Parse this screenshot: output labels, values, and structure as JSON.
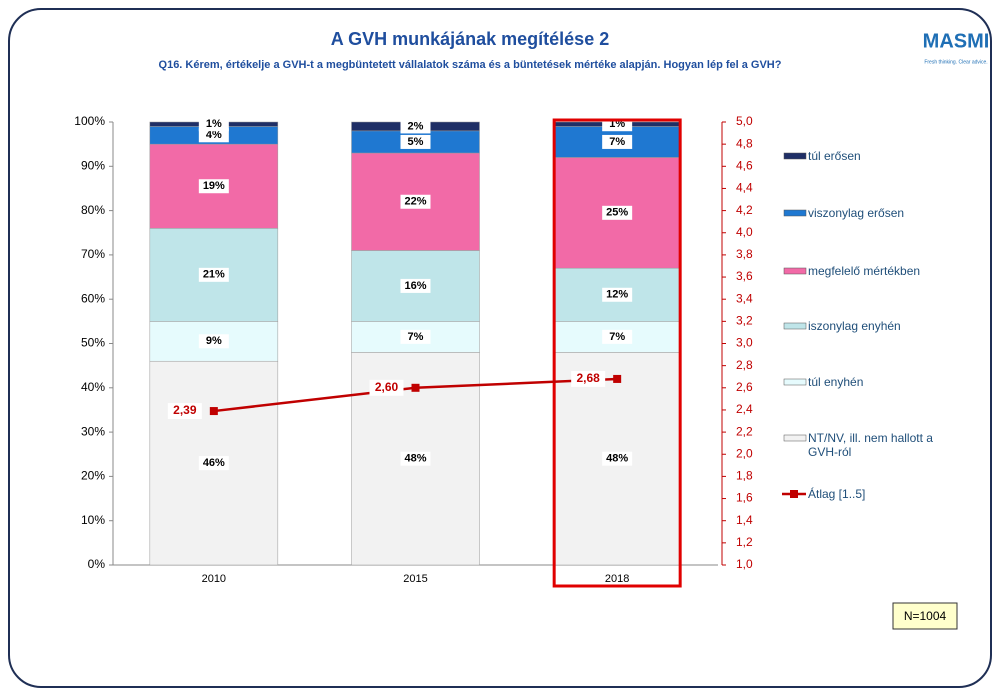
{
  "chart_data": {
    "type": "bar",
    "stacked": true,
    "title": "A GVH munkájának megítélése 2",
    "subtitle": "Q16. Kérem, értékelje a GVH-t a megbüntetett vállalatok száma és a büntetések mértéke alapján. Hogyan lép fel a GVH?",
    "logo": "MASMI",
    "tagline": "Fresh thinking. Clear advice.",
    "note": "N=1004",
    "categories": [
      "2010",
      "2015",
      "2018"
    ],
    "series": [
      {
        "name": "NT/NV, ill. nem hallott a GVH-ról",
        "color": "#f2f2f2",
        "values": [
          46,
          48,
          48
        ],
        "value_labels": [
          "46%",
          "48%",
          "48%"
        ]
      },
      {
        "name": "túl enyhén",
        "color": "#e6fbfd",
        "values": [
          9,
          7,
          7
        ],
        "value_labels": [
          "9%",
          "7%",
          "7%"
        ]
      },
      {
        "name": "iszonylag enyhén",
        "color": "#bfe5e9",
        "values": [
          21,
          16,
          12
        ],
        "value_labels": [
          "21%",
          "16%",
          "12%"
        ]
      },
      {
        "name": "megfelelő mértékben",
        "color": "#f26aa7",
        "values": [
          19,
          22,
          25
        ],
        "value_labels": [
          "19%",
          "22%",
          "25%"
        ]
      },
      {
        "name": "viszonylag erősen",
        "color": "#1f78d1",
        "values": [
          4,
          5,
          7
        ],
        "value_labels": [
          "4%",
          "5%",
          "7%"
        ]
      },
      {
        "name": "túl erősen",
        "color": "#1f2f66",
        "values": [
          1,
          2,
          1
        ],
        "value_labels": [
          "1%",
          "2%",
          "1%"
        ]
      },
      {
        "name": "Átlag [1..5]",
        "type": "line",
        "axis": "y2",
        "color": "#c00000",
        "values": [
          2.39,
          2.6,
          2.68
        ],
        "value_labels": [
          "2,39",
          "2,60",
          "2,68"
        ]
      }
    ],
    "ylim": [
      0,
      100
    ],
    "yticks": [
      {
        "value": 0,
        "label": "0%"
      },
      {
        "value": 10,
        "label": "10%"
      },
      {
        "value": 20,
        "label": "20%"
      },
      {
        "value": 30,
        "label": "30%"
      },
      {
        "value": 40,
        "label": "40%"
      },
      {
        "value": 50,
        "label": "50%"
      },
      {
        "value": 60,
        "label": "60%"
      },
      {
        "value": 70,
        "label": "70%"
      },
      {
        "value": 80,
        "label": "80%"
      },
      {
        "value": 90,
        "label": "90%"
      },
      {
        "value": 100,
        "label": "100%"
      }
    ],
    "y2lim": [
      1,
      5
    ],
    "y2ticks": [
      {
        "value": 1.0,
        "label": "1,0"
      },
      {
        "value": 1.2,
        "label": "1,2"
      },
      {
        "value": 1.4,
        "label": "1,4"
      },
      {
        "value": 1.6,
        "label": "1,6"
      },
      {
        "value": 1.8,
        "label": "1,8"
      },
      {
        "value": 2.0,
        "label": "2,0"
      },
      {
        "value": 2.2,
        "label": "2,2"
      },
      {
        "value": 2.4,
        "label": "2,4"
      },
      {
        "value": 2.6,
        "label": "2,6"
      },
      {
        "value": 2.8,
        "label": "2,8"
      },
      {
        "value": 3.0,
        "label": "3,0"
      },
      {
        "value": 3.2,
        "label": "3,2"
      },
      {
        "value": 3.4,
        "label": "3,4"
      },
      {
        "value": 3.6,
        "label": "3,6"
      },
      {
        "value": 3.8,
        "label": "3,8"
      },
      {
        "value": 4.0,
        "label": "4,0"
      },
      {
        "value": 4.2,
        "label": "4,2"
      },
      {
        "value": 4.4,
        "label": "4,4"
      },
      {
        "value": 4.6,
        "label": "4,6"
      },
      {
        "value": 4.8,
        "label": "4,8"
      },
      {
        "value": 5.0,
        "label": "5,0"
      }
    ]
  }
}
